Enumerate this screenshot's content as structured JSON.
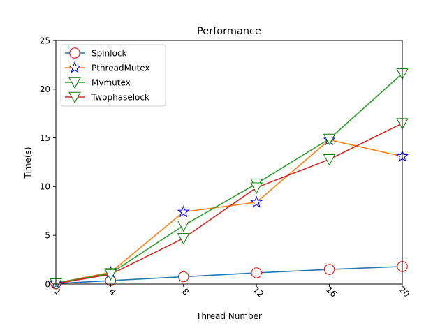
{
  "chart_data": {
    "type": "line",
    "title": "Performance",
    "xlabel": "Thread Number",
    "ylabel": "Time(s)",
    "x": [
      1,
      4,
      8,
      12,
      16,
      20
    ],
    "x_tick_labels": [
      "1",
      "4",
      "8",
      "12",
      "16",
      "20"
    ],
    "y_ticks": [
      0,
      5,
      10,
      15,
      20,
      25
    ],
    "y_tick_labels": [
      "0",
      "5",
      "10",
      "15",
      "20",
      "25"
    ],
    "xlim": [
      1,
      20
    ],
    "ylim": [
      0,
      25
    ],
    "grid": false,
    "legend_position": "top-left",
    "series": [
      {
        "name": "Spinlock",
        "values": [
          0.05,
          0.35,
          0.75,
          1.15,
          1.5,
          1.8
        ],
        "line_color": "#1f77b4",
        "marker": "circle",
        "marker_edge": "#ff0000",
        "marker_face": "#ffffff"
      },
      {
        "name": "PthreadMutex",
        "values": [
          0.1,
          1.2,
          7.4,
          8.4,
          14.8,
          13.1
        ],
        "line_color": "#ff7f0e",
        "marker": "star",
        "marker_edge": "#0000ff",
        "marker_face": "#ffffff"
      },
      {
        "name": "Mymutex",
        "values": [
          0.1,
          1.1,
          6.0,
          10.3,
          14.9,
          21.6
        ],
        "line_color": "#2ca02c",
        "marker": "triangle-down",
        "marker_edge": "#008000",
        "marker_face": "#ffffff"
      },
      {
        "name": "Twophaselock",
        "values": [
          0.05,
          1.0,
          4.7,
          9.9,
          12.8,
          16.5
        ],
        "line_color": "#d62728",
        "marker": "triangle-down",
        "marker_edge": "#008000",
        "marker_face": "#ffffff"
      }
    ]
  }
}
